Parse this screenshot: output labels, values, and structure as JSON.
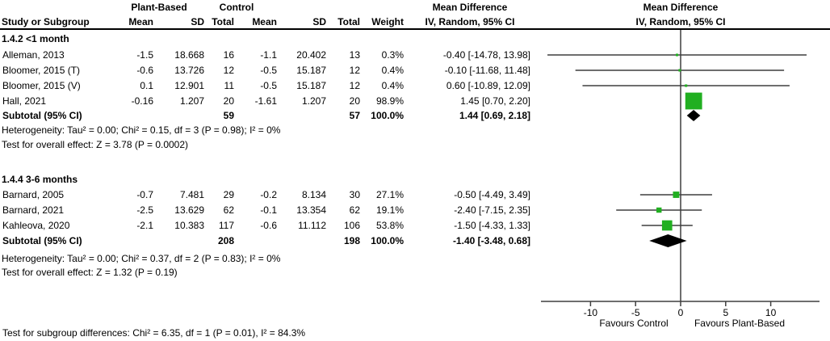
{
  "chart_data": {
    "type": "forest",
    "effect_measure": "Mean Difference",
    "columns": {
      "study": "Study or Subgroup",
      "treatment_group": "Plant-Based",
      "control_group": "Control",
      "mean": "Mean",
      "sd": "SD",
      "total": "Total",
      "weight": "Weight",
      "effect_header": "Mean Difference",
      "ci_header": "IV, Random, 95% CI"
    },
    "groups": [
      {
        "title": "1.4.2 <1 month",
        "studies": [
          {
            "name": "Alleman, 2013",
            "mean1": "-1.5",
            "sd1": "18.668",
            "n1": "16",
            "mean2": "-1.1",
            "sd2": "20.402",
            "n2": "13",
            "weight": "0.3%",
            "ci_text": "-0.40 [-14.78, 13.98]",
            "md": -0.4,
            "lo": -14.78,
            "hi": 13.98
          },
          {
            "name": "Bloomer, 2015 (T)",
            "mean1": "-0.6",
            "sd1": "13.726",
            "n1": "12",
            "mean2": "-0.5",
            "sd2": "15.187",
            "n2": "12",
            "weight": "0.4%",
            "ci_text": "-0.10 [-11.68, 11.48]",
            "md": -0.1,
            "lo": -11.68,
            "hi": 11.48
          },
          {
            "name": "Bloomer, 2015 (V)",
            "mean1": "0.1",
            "sd1": "12.901",
            "n1": "11",
            "mean2": "-0.5",
            "sd2": "15.187",
            "n2": "12",
            "weight": "0.4%",
            "ci_text": "0.60 [-10.89, 12.09]",
            "md": 0.6,
            "lo": -10.89,
            "hi": 12.09
          },
          {
            "name": "Hall, 2021",
            "mean1": "-0.16",
            "sd1": "1.207",
            "n1": "20",
            "mean2": "-1.61",
            "sd2": "1.207",
            "n2": "20",
            "weight": "98.9%",
            "ci_text": "1.45 [0.70, 2.20]",
            "md": 1.45,
            "lo": 0.7,
            "hi": 2.2
          }
        ],
        "subtotal": {
          "label": "Subtotal (95% CI)",
          "n1": "59",
          "n2": "57",
          "weight": "100.0%",
          "ci_text": "1.44 [0.69, 2.18]",
          "md": 1.44,
          "lo": 0.69,
          "hi": 2.18
        },
        "heterogeneity": "Heterogeneity: Tau² = 0.00; Chi² = 0.15, df = 3 (P = 0.98); I² = 0%",
        "overall_effect": "Test for overall effect: Z = 3.78 (P = 0.0002)"
      },
      {
        "title": "1.4.4 3-6 months",
        "studies": [
          {
            "name": "Barnard, 2005",
            "mean1": "-0.7",
            "sd1": "7.481",
            "n1": "29",
            "mean2": "-0.2",
            "sd2": "8.134",
            "n2": "30",
            "weight": "27.1%",
            "ci_text": "-0.50 [-4.49, 3.49]",
            "md": -0.5,
            "lo": -4.49,
            "hi": 3.49
          },
          {
            "name": "Barnard, 2021",
            "mean1": "-2.5",
            "sd1": "13.629",
            "n1": "62",
            "mean2": "-0.1",
            "sd2": "13.354",
            "n2": "62",
            "weight": "19.1%",
            "ci_text": "-2.40 [-7.15, 2.35]",
            "md": -2.4,
            "lo": -7.15,
            "hi": 2.35
          },
          {
            "name": "Kahleova, 2020",
            "mean1": "-2.1",
            "sd1": "10.383",
            "n1": "117",
            "mean2": "-0.6",
            "sd2": "11.112",
            "n2": "106",
            "weight": "53.8%",
            "ci_text": "-1.50 [-4.33, 1.33]",
            "md": -1.5,
            "lo": -4.33,
            "hi": 1.33
          }
        ],
        "subtotal": {
          "label": "Subtotal (95% CI)",
          "n1": "208",
          "n2": "198",
          "weight": "100.0%",
          "ci_text": "-1.40 [-3.48, 0.68]",
          "md": -1.4,
          "lo": -3.48,
          "hi": 0.68
        },
        "heterogeneity": "Heterogeneity: Tau² = 0.00; Chi² = 0.37, df = 2 (P = 0.83); I² = 0%",
        "overall_effect": "Test for overall effect: Z = 1.32 (P = 0.19)"
      }
    ],
    "axis": {
      "ticks": [
        -10,
        -5,
        0,
        5,
        10
      ],
      "range": [
        -15.5,
        15.4
      ],
      "favours_left": "Favours Control",
      "favours_right": "Favours Plant-Based"
    },
    "footer": "Test for subgroup differences: Chi² = 6.35, df = 1 (P = 0.01), I² = 84.3%",
    "style": {
      "square_color": "#21af21",
      "diamond_color": "#000000",
      "line_color": "#3f3f3f",
      "text_color": "#000000"
    }
  }
}
